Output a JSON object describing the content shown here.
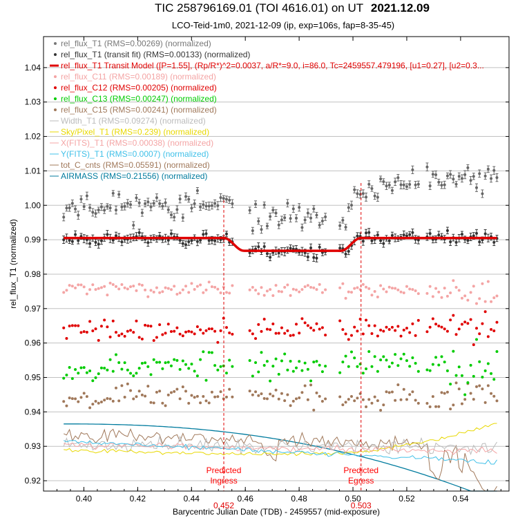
{
  "chart_data": {
    "type": "scatter",
    "title": {
      "main": "TIC 258796169.01 (TOI 4616.01) on UT",
      "date": "2021.12.09"
    },
    "subtitle": "LCO-Teid-1m0, 2021-12-09 (ip, exp=106s, fap=8-35-45)",
    "xlabel": "Barycentric Julian Date (TDB) - 2459557 (mid-exposure)",
    "ylabel": "rel_flux_T1 (normalized)",
    "xlim": [
      0.385,
      0.558
    ],
    "ylim": [
      0.917,
      1.049
    ],
    "x_ticks": [
      0.4,
      0.42,
      0.44,
      0.46,
      0.48,
      0.5,
      0.52,
      0.54
    ],
    "x_tick_labels": [
      "0.40",
      "0.42",
      "0.44",
      "0.46",
      "0.48",
      "0.50",
      "0.52",
      "0.54"
    ],
    "y_ticks": [
      0.92,
      0.93,
      0.94,
      0.95,
      0.96,
      0.97,
      0.98,
      0.99,
      1.0,
      1.01,
      1.02,
      1.03,
      1.04
    ],
    "y_tick_labels": [
      "0.92",
      "0.93",
      "0.94",
      "0.95",
      "0.96",
      "0.97",
      "0.98",
      "0.99",
      "1.00",
      "1.01",
      "1.02",
      "1.03",
      "1.04"
    ],
    "grid": "horizontal",
    "legend_position": "top-left",
    "x_start": 0.3925,
    "x_end": 0.5535,
    "n_points": 150,
    "ingress": 0.452,
    "egress": 0.503,
    "ingress_label": "0.452",
    "egress_label": "0.503",
    "annotations": [
      {
        "text": "Predicted",
        "color": "#ff0000"
      },
      {
        "text": "Ingress",
        "color": "#ff0000"
      },
      {
        "text": "Predicted",
        "color": "#ff0000"
      },
      {
        "text": "Egress",
        "color": "#ff0000"
      }
    ],
    "series": [
      {
        "key": "t1_raw",
        "name": "rel_flux_T1 (RMS=0.00269) (normalized)",
        "color": "#666666",
        "legend_color": "#777777",
        "kind": "errorbar",
        "base": 1.0,
        "depth": 0.0037,
        "scatter": 0.0026,
        "trend": 0.0035,
        "seed": 11
      },
      {
        "key": "t1_fit",
        "name": "rel_flux_T1 (transit fit) (RMS=0.00133) (normalized)",
        "color": "#333333",
        "legend_color": "#333333",
        "kind": "errorbar",
        "base": 0.9905,
        "depth": 0.0037,
        "scatter": 0.0013,
        "trend": 0.0,
        "seed": 23
      },
      {
        "key": "model",
        "name": "rel_flux_T1 Transit Model ([P=1.55], (Rp/R*)^2=0.0037, a/R*=9.0, i=86.0, Tc=2459557.479196, [u1=0.27], [u2=0.3...",
        "color": "#e00000",
        "legend_color": "#e00000",
        "kind": "model",
        "base": 0.9905,
        "depth": 0.0037
      },
      {
        "key": "c11",
        "name": "rel_flux_C11 (RMS=0.00189) (normalized)",
        "color": "#f4a4a4",
        "legend_color": "#f4a4a4",
        "kind": "dots",
        "base": 0.9755,
        "scatter": 0.0013,
        "trend": -0.001,
        "seed": 31
      },
      {
        "key": "c12",
        "name": "rel_flux_C12 (RMS=0.00205) (normalized)",
        "color": "#e00000",
        "legend_color": "#e00000",
        "kind": "dots",
        "base": 0.964,
        "scatter": 0.0022,
        "trend": 0.001,
        "seed": 41
      },
      {
        "key": "c13",
        "name": "rel_flux_C13 (RMS=0.00247) (normalized)",
        "color": "#00cc00",
        "legend_color": "#00cc00",
        "kind": "dots",
        "base": 0.9535,
        "scatter": 0.0028,
        "trend": 0.001,
        "seed": 53
      },
      {
        "key": "c15",
        "name": "rel_flux_C15 (RMS=0.00241) (normalized)",
        "color": "#a0785a",
        "legend_color": "#a0785a",
        "kind": "dots",
        "base": 0.9445,
        "scatter": 0.0022,
        "trend": 0.0,
        "seed": 67
      },
      {
        "key": "width",
        "name": "Width_T1 (RMS=0.09274) (normalized)",
        "color": "#bbbbbb",
        "legend_color": "#bbbbbb",
        "kind": "curve",
        "base": 0.9305,
        "scatter": 0.0014,
        "trend": -0.001,
        "seed": 71
      },
      {
        "key": "sky",
        "name": "Sky/Pixel_T1 (RMS=0.239) (normalized)",
        "color": "#e8d800",
        "legend_color": "#e8d800",
        "kind": "sky"
      },
      {
        "key": "xfits",
        "name": "X(FITS)_T1 (RMS=0.00038) (normalized)",
        "color": "#f4a4a4",
        "legend_color": "#f4a4a4",
        "kind": "curve",
        "base": 0.9305,
        "scatter": 0.0006,
        "trend": -0.002,
        "seed": 83
      },
      {
        "key": "yfits",
        "name": "Y(FITS)_T1 (RMS=0.0007) (normalized)",
        "color": "#40c0e8",
        "legend_color": "#40c0e8",
        "kind": "curve",
        "base": 0.9315,
        "scatter": 0.0005,
        "trend": -0.006,
        "seed": 89
      },
      {
        "key": "totc",
        "name": "tot_C_cnts (RMS=0.05591) (normalized)",
        "color": "#a0785a",
        "legend_color": "#a0785a",
        "kind": "totc"
      },
      {
        "key": "airmass",
        "name": "AIRMASS (RMS=0.21556) (normalized)",
        "color": "#007b9e",
        "legend_color": "#007b9e",
        "kind": "airmass"
      }
    ]
  }
}
